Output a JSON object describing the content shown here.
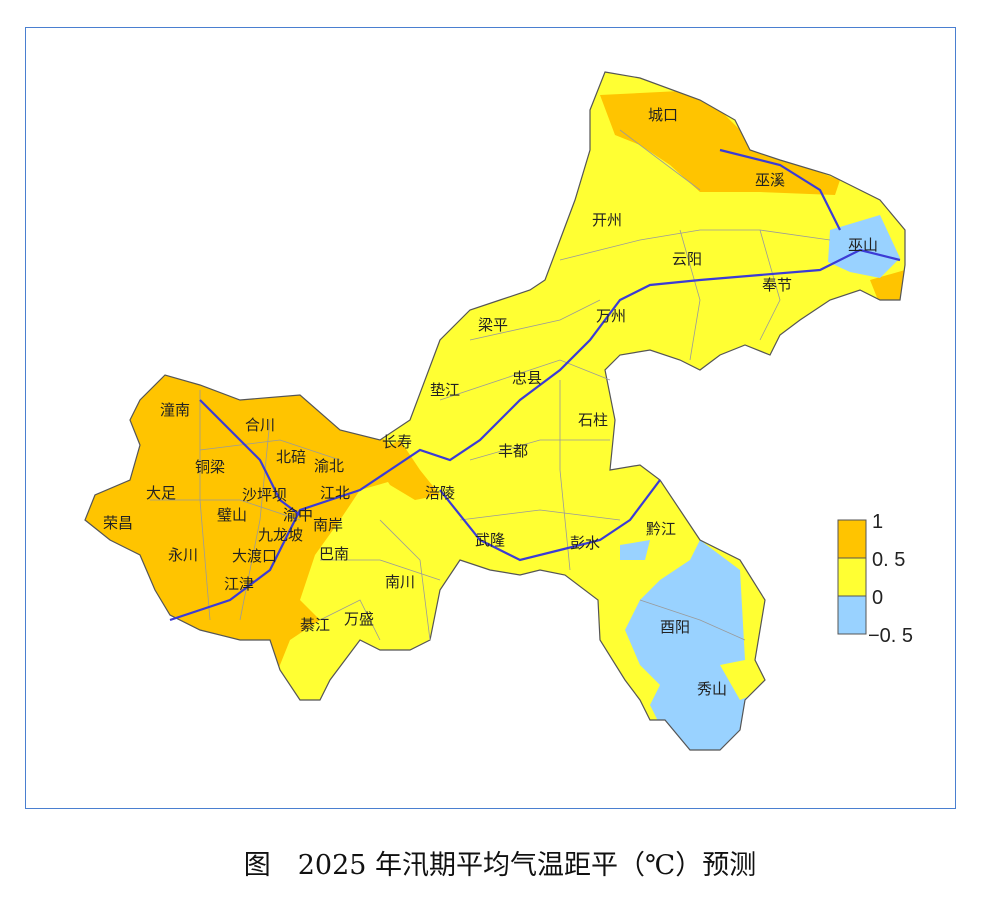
{
  "caption": "图　2025 年汛期平均气温距平（℃）预测",
  "legend": {
    "ticks": [
      "1",
      "0. 5",
      "0",
      "−0. 5"
    ],
    "classes": [
      {
        "range": "0.5 ~ 1",
        "color": "#FFC400"
      },
      {
        "range": "0 ~ 0.5",
        "color": "#FFFF33"
      },
      {
        "range": "-0.5 ~ 0",
        "color": "#99D2FF"
      }
    ]
  },
  "colors": {
    "river": "#3b3bd6",
    "border": "#9a9a9a",
    "frame": "#4a7fd0"
  },
  "districts": [
    "城口",
    "巫溪",
    "开州",
    "巫山",
    "云阳",
    "奉节",
    "梁平",
    "万州",
    "忠县",
    "垫江",
    "石柱",
    "潼南",
    "合川",
    "长寿",
    "北碚",
    "渝北",
    "丰都",
    "铜梁",
    "大足",
    "沙坪坝",
    "江北",
    "涪陵",
    "璧山",
    "渝中",
    "荣昌",
    "九龙坡",
    "南岸",
    "黔江",
    "武隆",
    "彭水",
    "永川",
    "大渡口",
    "巴南",
    "江津",
    "南川",
    "酉阳",
    "綦江",
    "万盛",
    "秀山"
  ]
}
